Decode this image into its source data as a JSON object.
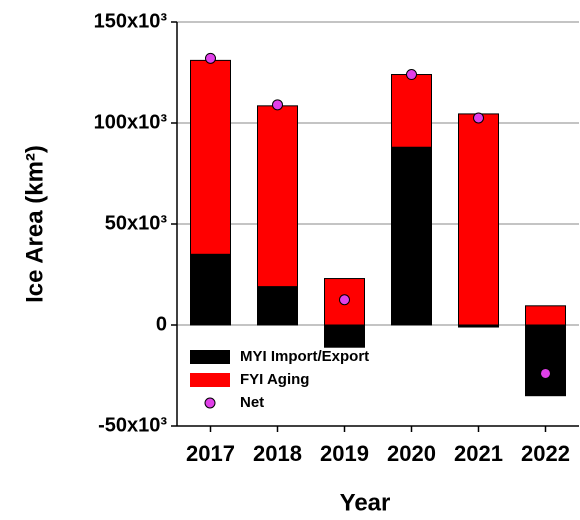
{
  "chart_data": {
    "type": "bar",
    "stacked": true,
    "categories": [
      "2017",
      "2018",
      "2019",
      "2020",
      "2021",
      "2022"
    ],
    "series": [
      {
        "name": "MYI Import/Export",
        "color": "#000000",
        "values": [
          35000,
          19000,
          -11000,
          88000,
          -1000,
          -35000
        ]
      },
      {
        "name": "FYI Aging",
        "color": "#ff0000",
        "values": [
          96000,
          89500,
          23000,
          36000,
          104500,
          9500
        ]
      },
      {
        "name": "Net",
        "color": "#e040e8",
        "type": "scatter",
        "values": [
          132000,
          109000,
          12500,
          124000,
          102500,
          -24000
        ]
      }
    ],
    "x_label": "Year",
    "y_label": "Ice Area (km²)",
    "ylim": [
      -50000,
      150000
    ],
    "yticks": [
      {
        "value": -50000,
        "label": "-50x10³"
      },
      0,
      {
        "value": 50000,
        "label": "50x10³"
      },
      {
        "value": 100000,
        "label": "100x10³"
      },
      {
        "value": 150000,
        "label": "150x10³"
      }
    ],
    "grid": true,
    "legend": "lower left"
  }
}
